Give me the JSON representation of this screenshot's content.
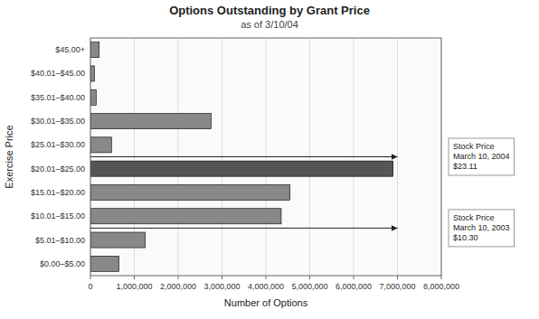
{
  "chart_data": {
    "type": "bar",
    "orientation": "horizontal",
    "title": "Options Outstanding by Grant Price",
    "subtitle": "as of 3/10/04",
    "xlabel": "Number of Options",
    "ylabel": "Exercise Price",
    "categories": [
      "$0.00–$5.00",
      "$5.01–$10.00",
      "$10.01–$15.00",
      "$15.01–$20.00",
      "$20.01–$25.00",
      "$25.01–$30.00",
      "$30.01–$35.00",
      "$35.01–$40.00",
      "$40.01–$45.00",
      "$45.00+"
    ],
    "values": [
      650000,
      1250000,
      4350000,
      4550000,
      6900000,
      480000,
      2750000,
      130000,
      90000,
      200000
    ],
    "colors": [
      "#888888",
      "#888888",
      "#888888",
      "#888888",
      "#555555",
      "#888888",
      "#888888",
      "#888888",
      "#888888",
      "#888888"
    ],
    "xlim": [
      0,
      8000000
    ],
    "xticks": [
      0,
      {
        "value": 1000000,
        "label": "1,000,000"
      },
      {
        "value": 2000000,
        "label": "2,000,000"
      },
      {
        "value": 3000000,
        "label": "3,000,000"
      },
      {
        "value": 4000000,
        "label": "4,000,000"
      },
      {
        "value": 5000000,
        "label": "5,000,000"
      },
      {
        "value": 6000000,
        "label": "6,000,000"
      },
      {
        "value": 7000000,
        "label": "7,000,000"
      },
      {
        "value": 8000000,
        "label": "8,000,000"
      }
    ],
    "grid": true,
    "annotations": [
      {
        "text": "Stock Price\nMarch 10, 2004\n$23.11",
        "x": 7000000,
        "category": "$20.01–$25.00"
      },
      {
        "text": "Stock Price\nMarch 10, 2003\n$10.30",
        "x": 7000000,
        "category": "$10.01–$15.00"
      }
    ]
  }
}
